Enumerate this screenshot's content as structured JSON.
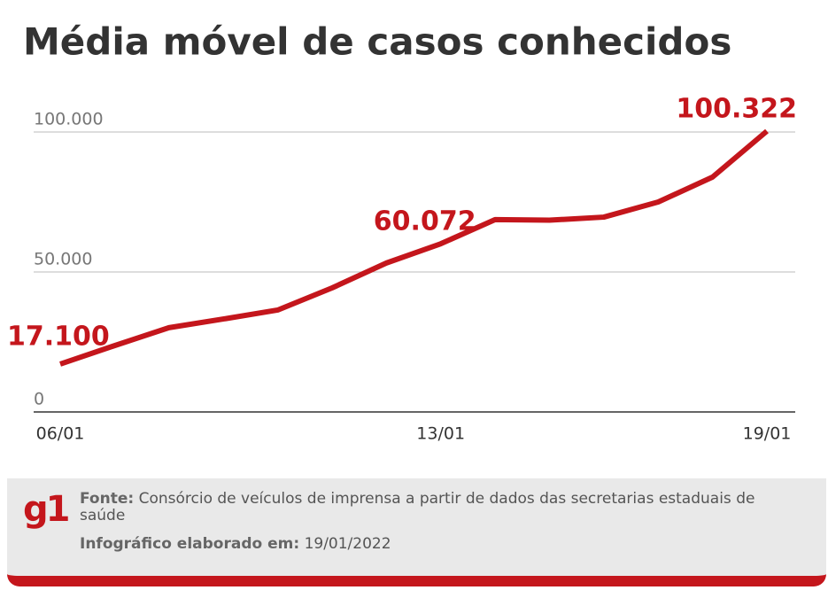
{
  "chart_data": {
    "type": "line",
    "title": "Média móvel de casos conhecidos",
    "categories": [
      "06/01",
      null,
      null,
      null,
      null,
      null,
      null,
      "13/01",
      null,
      null,
      null,
      null,
      null,
      "19/01"
    ],
    "series": [
      {
        "name": null,
        "color": "#c4161c",
        "values": [
          17100,
          23700,
          30100,
          33200,
          36400,
          44300,
          53200,
          60072,
          68700,
          68500,
          69600,
          75000,
          83900,
          100322
        ],
        "value_labels": [
          "17.100",
          null,
          null,
          null,
          null,
          null,
          null,
          "60.072",
          null,
          null,
          null,
          null,
          null,
          "100.322"
        ]
      }
    ],
    "ylim": [
      0,
      100000
    ],
    "yticks": [
      0,
      {
        "value": 50000,
        "label": "50.000"
      },
      {
        "value": 100000,
        "label": "100.000"
      }
    ],
    "grid": true
  },
  "footer": {
    "logo": "g1",
    "source_label": "Fonte:",
    "source": "Consórcio de veículos de imprensa a partir de dados das secretarias estaduais de saúde",
    "date_label": "Infográfico elaborado em:",
    "date": "19/01/2022"
  }
}
